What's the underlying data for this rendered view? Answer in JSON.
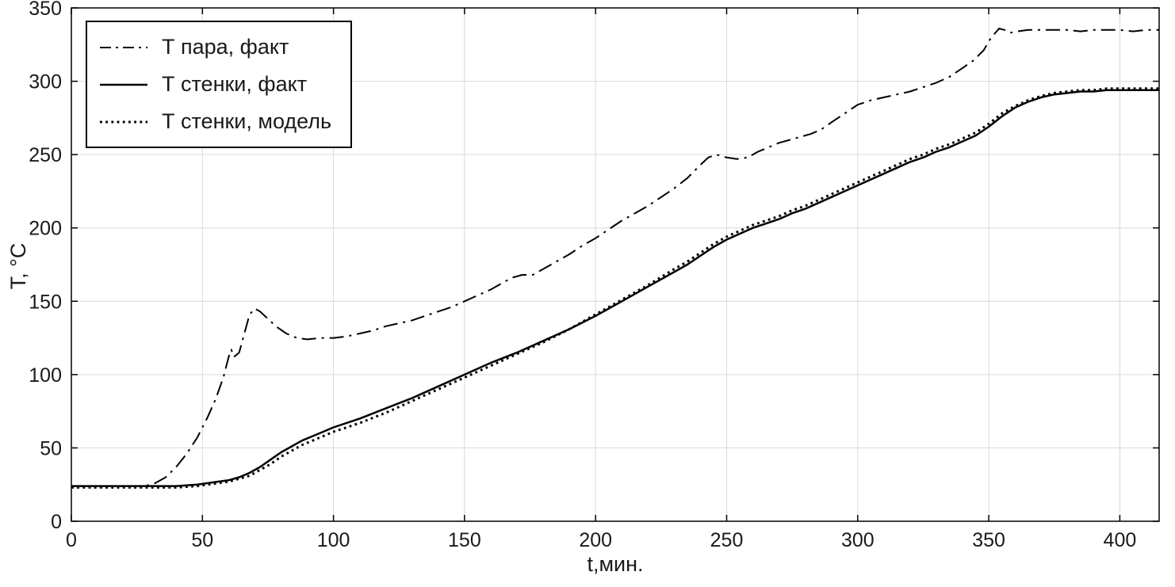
{
  "chart_data": {
    "type": "line",
    "title": "",
    "xlabel": "t,мин.",
    "ylabel": "T, °C",
    "xlim": [
      0,
      415
    ],
    "ylim": [
      0,
      350
    ],
    "xticks": [
      0,
      50,
      100,
      150,
      200,
      250,
      300,
      350,
      400
    ],
    "yticks": [
      0,
      50,
      100,
      150,
      200,
      250,
      300,
      350
    ],
    "grid": true,
    "legend_position": "top-left",
    "colors": {
      "line": "#000000",
      "grid": "#d9d9d9",
      "axis": "#000000",
      "text": "#1a1a1a",
      "background": "#ffffff"
    },
    "series": [
      {
        "name": "Т пара, факт",
        "style": "dashdot",
        "color": "#000000",
        "width": 2,
        "x": [
          0,
          10,
          20,
          28,
          32,
          36,
          40,
          44,
          48,
          52,
          55,
          58,
          60,
          61,
          62,
          64,
          66,
          68,
          70,
          72,
          75,
          78,
          82,
          86,
          90,
          95,
          100,
          105,
          110,
          115,
          120,
          125,
          130,
          135,
          140,
          145,
          150,
          155,
          160,
          165,
          168,
          172,
          176,
          180,
          185,
          190,
          195,
          200,
          205,
          210,
          215,
          220,
          225,
          230,
          235,
          240,
          243,
          246,
          250,
          254,
          258,
          262,
          266,
          270,
          274,
          278,
          282,
          286,
          290,
          295,
          300,
          305,
          310,
          315,
          320,
          325,
          330,
          335,
          340,
          344,
          348,
          351,
          354,
          356,
          358,
          361,
          365,
          370,
          375,
          380,
          385,
          390,
          395,
          400,
          405,
          410,
          415
        ],
        "y": [
          24,
          24,
          24,
          24,
          26,
          30,
          37,
          46,
          57,
          71,
          83,
          98,
          112,
          117,
          112,
          115,
          128,
          141,
          145,
          143,
          138,
          133,
          128,
          125,
          124,
          125,
          125,
          126,
          128,
          130,
          133,
          135,
          137,
          140,
          143,
          146,
          150,
          154,
          158,
          163,
          166,
          168,
          168,
          172,
          177,
          182,
          188,
          193,
          199,
          205,
          210,
          215,
          221,
          227,
          234,
          243,
          248,
          250,
          248,
          247,
          248,
          252,
          255,
          258,
          260,
          262,
          264,
          267,
          272,
          278,
          284,
          287,
          289,
          291,
          293,
          296,
          299,
          303,
          309,
          314,
          321,
          330,
          336,
          335,
          333,
          334,
          335,
          335,
          335,
          335,
          334,
          335,
          335,
          335,
          334,
          335,
          335
        ]
      },
      {
        "name": "Т стенки, факт",
        "style": "solid",
        "color": "#000000",
        "width": 2.5,
        "x": [
          0,
          20,
          40,
          48,
          52,
          56,
          60,
          64,
          68,
          72,
          76,
          80,
          84,
          88,
          92,
          96,
          100,
          110,
          120,
          130,
          140,
          150,
          160,
          170,
          180,
          190,
          200,
          210,
          220,
          230,
          235,
          240,
          245,
          250,
          255,
          260,
          265,
          270,
          275,
          280,
          285,
          290,
          295,
          300,
          305,
          310,
          315,
          320,
          325,
          330,
          335,
          340,
          345,
          350,
          355,
          360,
          365,
          370,
          375,
          380,
          385,
          390,
          395,
          400,
          405,
          410,
          415
        ],
        "y": [
          24,
          24,
          24,
          25,
          26,
          27,
          28,
          30,
          33,
          37,
          42,
          47,
          51,
          55,
          58,
          61,
          64,
          70,
          77,
          84,
          92,
          100,
          108,
          115,
          123,
          131,
          140,
          150,
          160,
          170,
          175,
          181,
          187,
          192,
          196,
          200,
          203,
          206,
          210,
          213,
          217,
          221,
          225,
          229,
          233,
          237,
          241,
          245,
          248,
          252,
          255,
          259,
          263,
          269,
          276,
          282,
          286,
          289,
          291,
          292,
          293,
          293,
          294,
          294,
          294,
          294,
          294
        ]
      },
      {
        "name": "Т стенки, модель",
        "style": "dotted",
        "color": "#000000",
        "width": 3,
        "x": [
          0,
          20,
          40,
          48,
          52,
          56,
          60,
          64,
          68,
          72,
          76,
          80,
          84,
          88,
          92,
          96,
          100,
          110,
          120,
          130,
          140,
          150,
          160,
          170,
          180,
          190,
          200,
          210,
          220,
          230,
          235,
          240,
          245,
          250,
          255,
          260,
          265,
          270,
          275,
          280,
          285,
          290,
          295,
          300,
          305,
          310,
          315,
          320,
          325,
          330,
          335,
          340,
          345,
          350,
          355,
          360,
          365,
          370,
          375,
          380,
          385,
          390,
          395,
          400,
          405,
          410,
          415
        ],
        "y": [
          23,
          23,
          23,
          24,
          25,
          26,
          27,
          29,
          31,
          35,
          39,
          44,
          48,
          52,
          55,
          58,
          61,
          67,
          74,
          82,
          90,
          98,
          106,
          114,
          122,
          131,
          141,
          151,
          161,
          172,
          177,
          183,
          189,
          194,
          198,
          202,
          205,
          208,
          212,
          215,
          219,
          223,
          227,
          231,
          235,
          239,
          243,
          247,
          250,
          254,
          257,
          261,
          265,
          271,
          278,
          283,
          287,
          290,
          292,
          293,
          294,
          294,
          295,
          295,
          295,
          295,
          295
        ]
      }
    ]
  }
}
